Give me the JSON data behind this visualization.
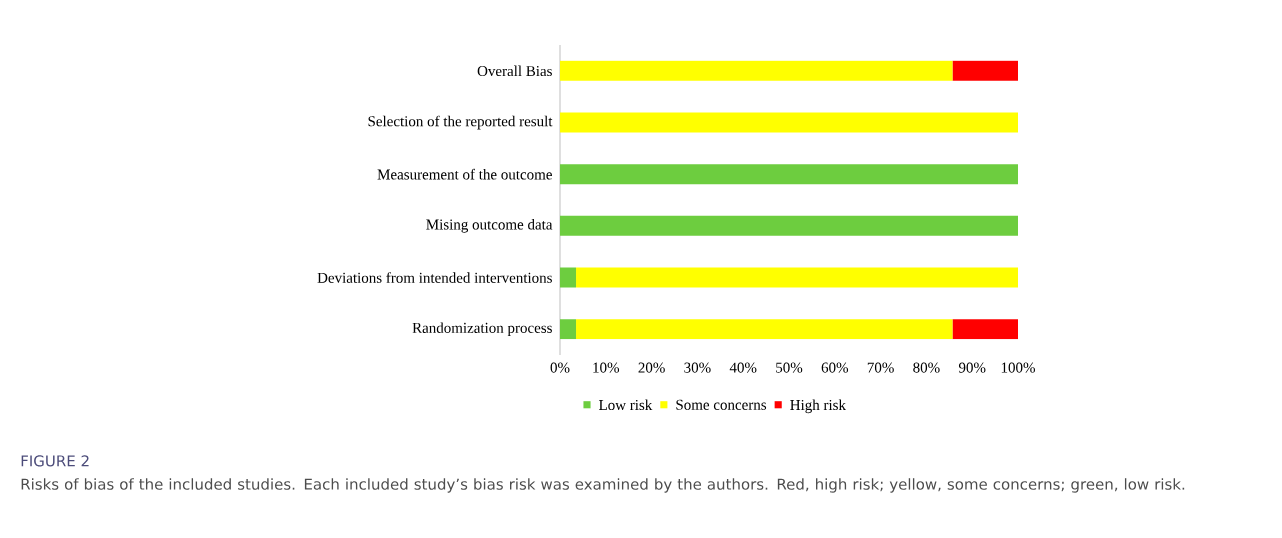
{
  "chart_data": {
    "type": "bar",
    "orientation": "horizontal",
    "stacked": true,
    "categories": [
      "Overall Bias",
      "Selection of the reported result",
      "Measurement of the outcome",
      "Mising outcome data",
      "Deviations from intended interventions",
      "Randomization process"
    ],
    "series": [
      {
        "name": "Low risk",
        "color": "#6dcd3f",
        "values": [
          0,
          0,
          100,
          100,
          3.5,
          3.5
        ]
      },
      {
        "name": "Some concerns",
        "color": "#ffff00",
        "values": [
          85.7,
          100,
          0,
          0,
          96.5,
          82.2
        ]
      },
      {
        "name": "High risk",
        "color": "#ff0000",
        "values": [
          14.3,
          0,
          0,
          0,
          0,
          14.3
        ]
      }
    ],
    "xlim": [
      0,
      100
    ],
    "xticks": [
      {
        "value": 0,
        "label": "0%"
      },
      {
        "value": 10,
        "label": "10%"
      },
      {
        "value": 20,
        "label": "20%"
      },
      {
        "value": 30,
        "label": "30%"
      },
      {
        "value": 40,
        "label": "40%"
      },
      {
        "value": 50,
        "label": "50%"
      },
      {
        "value": 60,
        "label": "60%"
      },
      {
        "value": 70,
        "label": "70%"
      },
      {
        "value": 80,
        "label": "80%"
      },
      {
        "value": 90,
        "label": "90%"
      },
      {
        "value": 100,
        "label": "100%"
      }
    ],
    "grid": false,
    "legend": "bottom",
    "annotations": [
      "FIGURE 2",
      "Risks of bias of the included studies. Each included study’s bias risk was examined by the authors. Red, high risk; yellow, some concerns; green, low risk."
    ]
  }
}
